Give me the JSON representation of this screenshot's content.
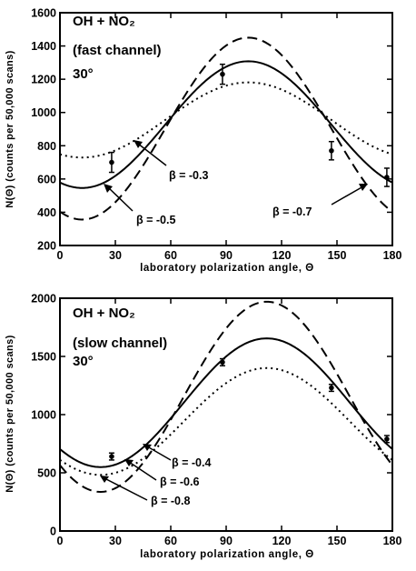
{
  "chart_data": [
    {
      "type": "line",
      "annotation_lines": [
        "OH + NO₂",
        "(fast  channel)",
        "30°"
      ],
      "xlabel": "laboratory  polarization  angle,  Θ",
      "ylabel": "N(Θ)  (counts  per  50,000  scans)",
      "xlim": [
        0,
        180
      ],
      "ylim": [
        200,
        1600
      ],
      "xticks": [
        "0",
        "30",
        "60",
        "90",
        "120",
        "150",
        "180"
      ],
      "yticks": [
        "200",
        "400",
        "600",
        "800",
        "1000",
        "1200",
        "1400",
        "1600"
      ],
      "series": [
        {
          "label": "β  =  -0.3",
          "style": "dotted",
          "mean": 955,
          "amp": 226,
          "phase_deg": 102
        },
        {
          "label": "β  =  -0.5",
          "style": "solid",
          "mean": 927,
          "amp": 381,
          "phase_deg": 102
        },
        {
          "label": "β  =  -0.7",
          "style": "dashed",
          "mean": 903,
          "amp": 547,
          "phase_deg": 102
        }
      ],
      "points": [
        {
          "x": 28,
          "y": 700,
          "err": 60
        },
        {
          "x": 88,
          "y": 1230,
          "err": 60
        },
        {
          "x": 147,
          "y": 770,
          "err": 55
        },
        {
          "x": 177,
          "y": 610,
          "err": 55
        }
      ],
      "beta_labels": [
        "β  =  -0.3",
        "β  =  -0.5",
        "β  =  -0.7"
      ]
    },
    {
      "type": "line",
      "annotation_lines": [
        "OH + NO₂",
        "(slow  channel)",
        "30°"
      ],
      "xlabel": "laboratory  polarization  angle,  Θ",
      "ylabel": "N(Θ)  (counts  per  50,000  scans)",
      "xlim": [
        0,
        180
      ],
      "ylim": [
        0,
        2000
      ],
      "xticks": [
        "0",
        "30",
        "60",
        "90",
        "120",
        "150",
        "180"
      ],
      "yticks": [
        "0",
        "500",
        "1000",
        "1500",
        "2000"
      ],
      "series": [
        {
          "label": "β  =  -0.4",
          "style": "dotted",
          "mean": 941,
          "amp": 459,
          "phase_deg": 112
        },
        {
          "label": "β  =  -0.6",
          "style": "solid",
          "mean": 1102,
          "amp": 553,
          "phase_deg": 112
        },
        {
          "label": "β  =  -0.8",
          "style": "dashed",
          "mean": 1153,
          "amp": 817,
          "phase_deg": 112
        }
      ],
      "points": [
        {
          "x": 28,
          "y": 640,
          "err": 30
        },
        {
          "x": 88,
          "y": 1450,
          "err": 30
        },
        {
          "x": 147,
          "y": 1230,
          "err": 30
        },
        {
          "x": 177,
          "y": 790,
          "err": 30
        }
      ],
      "beta_labels": [
        "β  =  -0.4",
        "β  =  -0.6",
        "β  =  -0.8"
      ]
    }
  ]
}
